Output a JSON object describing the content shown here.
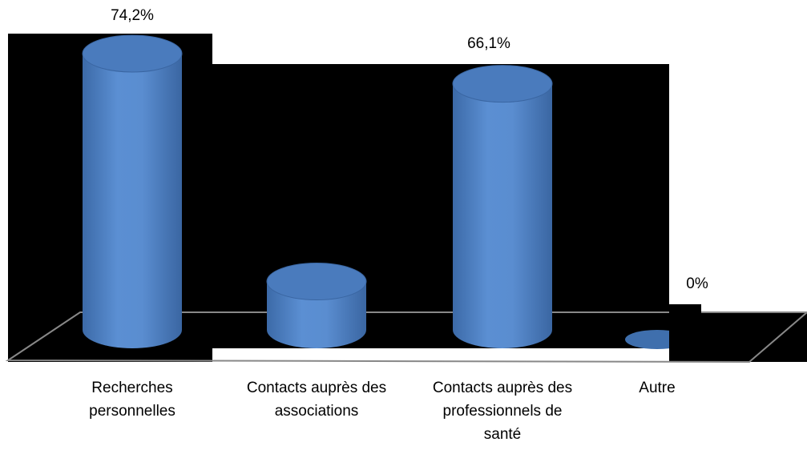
{
  "chart_data": {
    "type": "bar",
    "categories": [
      "Recherches personnelles",
      "Contacts auprès des associations",
      "Contacts auprès des professionnels de santé",
      "Autre"
    ],
    "values": [
      74.2,
      13,
      66.1,
      0
    ],
    "value_labels": [
      "74,2%",
      null,
      "66,1%",
      "0%"
    ],
    "color": "#4f81bd"
  }
}
